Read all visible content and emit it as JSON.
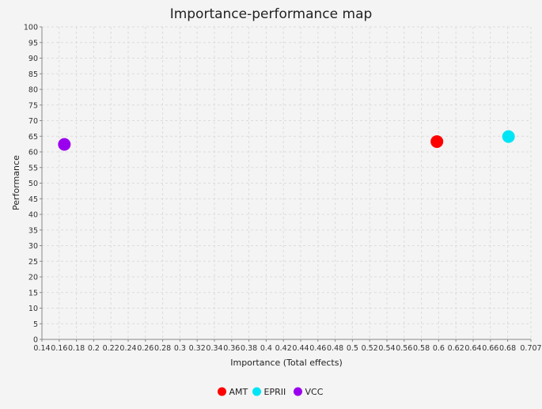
{
  "chart_data": {
    "type": "scatter",
    "title": "Importance-performance map",
    "xlabel": "Importance (Total effects)",
    "ylabel": "Performance",
    "xlim": [
      0.14,
      0.707
    ],
    "ylim": [
      0,
      100
    ],
    "x_ticks": [
      0.14,
      0.16,
      0.18,
      0.2,
      0.22,
      0.24,
      0.26,
      0.28,
      0.3,
      0.32,
      0.34,
      0.36,
      0.38,
      0.4,
      0.42,
      0.44,
      0.46,
      0.48,
      0.5,
      0.52,
      0.54,
      0.56,
      0.58,
      0.6,
      0.62,
      0.64,
      0.66,
      0.68,
      0.707
    ],
    "x_tick_labels": [
      "0.14",
      "0.16",
      "0.18",
      "0.2",
      "0.22",
      "0.24",
      "0.26",
      "0.28",
      "0.3",
      "0.32",
      "0.34",
      "0.36",
      "0.38",
      "0.4",
      "0.42",
      "0.44",
      "0.46",
      "0.48",
      "0.5",
      "0.52",
      "0.54",
      "0.56",
      "0.58",
      "0.6",
      "0.62",
      "0.64",
      "0.66",
      "0.68",
      "0.707"
    ],
    "y_ticks": [
      0,
      5,
      10,
      15,
      20,
      25,
      30,
      35,
      40,
      45,
      50,
      55,
      60,
      65,
      70,
      75,
      80,
      85,
      90,
      95,
      100
    ],
    "grid": true,
    "legend_position": "bottom-center",
    "series": [
      {
        "name": "AMT",
        "color": "#ff0000",
        "x": [
          0.598
        ],
        "y": [
          63.3
        ]
      },
      {
        "name": "EPRII",
        "color": "#00e5f5",
        "x": [
          0.681
        ],
        "y": [
          64.9
        ]
      },
      {
        "name": "VCC",
        "color": "#9b00ee",
        "x": [
          0.166
        ],
        "y": [
          62.4
        ]
      }
    ]
  }
}
